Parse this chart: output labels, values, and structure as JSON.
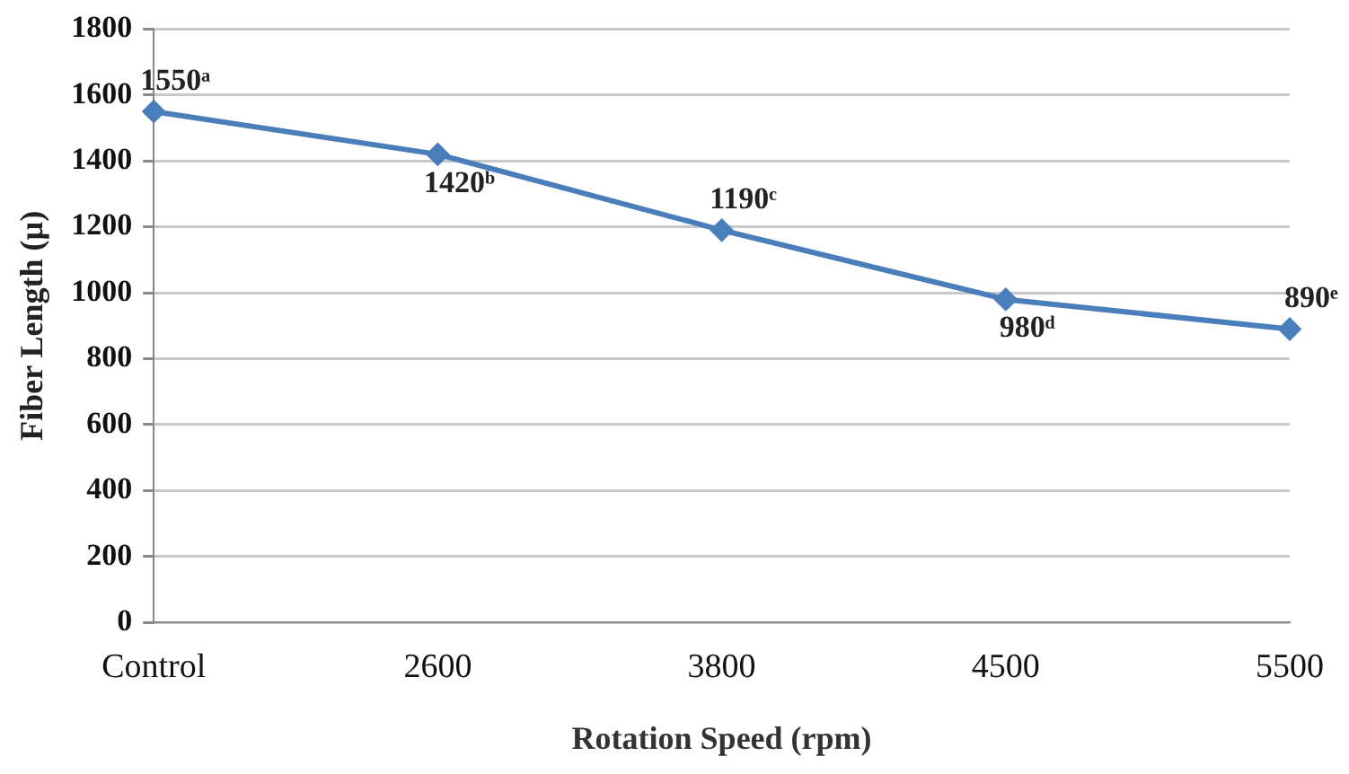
{
  "chart_data": {
    "type": "line",
    "xlabel": "Rotation Speed (rpm)",
    "ylabel": "Fiber Length (µ)",
    "categories": [
      "Control",
      "2600",
      "3800",
      "4500",
      "5500"
    ],
    "series": [
      {
        "color": "#4a7ebb",
        "values": [
          1550,
          1420,
          1190,
          980,
          890
        ],
        "value_labels": [
          "1550ᵃ",
          "1420ᵇ",
          "1190ᶜ",
          "980ᵈ",
          "890ᵉ"
        ]
      }
    ],
    "ylim": [
      0,
      1800
    ],
    "yticks": [
      0,
      200,
      400,
      600,
      800,
      1000,
      1200,
      1400,
      1600,
      1800
    ],
    "grid": "y",
    "legend": false,
    "marker": "diamond",
    "line_style": "solid"
  }
}
